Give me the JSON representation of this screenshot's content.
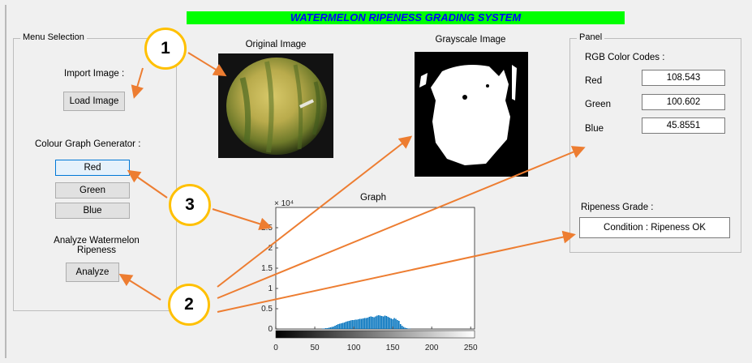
{
  "title": "WATERMELON RIPENESS GRADING SYSTEM",
  "menu": {
    "title": "Menu Selection",
    "import_label": "Import Image :",
    "load_button": "Load Image",
    "colour_label": "Colour Graph Generator :",
    "red_button": "Red",
    "green_button": "Green",
    "blue_button": "Blue",
    "analyze_label": "Analyze Watermelon\nRipeness",
    "analyze_button": "Analyze"
  },
  "images": {
    "original_title": "Original Image",
    "grayscale_title": "Grayscale Image"
  },
  "panel": {
    "title": "Panel",
    "rgb_label": "RGB Color Codes :",
    "red_label": "Red",
    "red_value": "108.543",
    "green_label": "Green",
    "green_value": "100.602",
    "blue_label": "Blue",
    "blue_value": "45.8551",
    "ripeness_label": "Ripeness Grade :",
    "ripeness_value": "Condition : Ripeness OK"
  },
  "callouts": [
    "1",
    "2",
    "3"
  ],
  "colors": {
    "title_bg": "#00ff00",
    "title_text": "#0000ff",
    "callout_border": "#ffc000",
    "arrow": "#ed7d31",
    "histogram": "#0072bd"
  },
  "chart_data": {
    "type": "bar",
    "title": "Graph",
    "exponent_label": "× 10⁴",
    "x_ticks": [
      "0",
      "50",
      "100",
      "150",
      "200",
      "250"
    ],
    "y_ticks": [
      "0",
      "0.5",
      "1",
      "1.5",
      "2",
      "2.5"
    ],
    "xlim": [
      0,
      255
    ],
    "ylim": [
      0,
      3
    ],
    "bins": [
      60,
      62,
      64,
      66,
      68,
      70,
      72,
      74,
      76,
      78,
      80,
      82,
      84,
      86,
      88,
      90,
      92,
      94,
      96,
      98,
      100,
      102,
      104,
      106,
      108,
      110,
      112,
      114,
      116,
      118,
      120,
      122,
      124,
      126,
      128,
      130,
      132,
      134,
      136,
      138,
      140,
      142,
      144,
      146,
      148,
      150,
      152,
      154,
      156,
      158,
      160,
      162,
      164,
      166,
      168,
      170,
      172
    ],
    "values": [
      0.01,
      0.01,
      0.02,
      0.02,
      0.03,
      0.04,
      0.05,
      0.06,
      0.08,
      0.1,
      0.12,
      0.13,
      0.14,
      0.15,
      0.16,
      0.18,
      0.19,
      0.2,
      0.21,
      0.22,
      0.22,
      0.23,
      0.23,
      0.24,
      0.25,
      0.25,
      0.26,
      0.27,
      0.27,
      0.28,
      0.3,
      0.31,
      0.3,
      0.29,
      0.31,
      0.33,
      0.34,
      0.33,
      0.32,
      0.31,
      0.33,
      0.32,
      0.3,
      0.28,
      0.26,
      0.24,
      0.27,
      0.25,
      0.22,
      0.2,
      0.12,
      0.08,
      0.05,
      0.03,
      0.02,
      0.01,
      0.01
    ]
  }
}
